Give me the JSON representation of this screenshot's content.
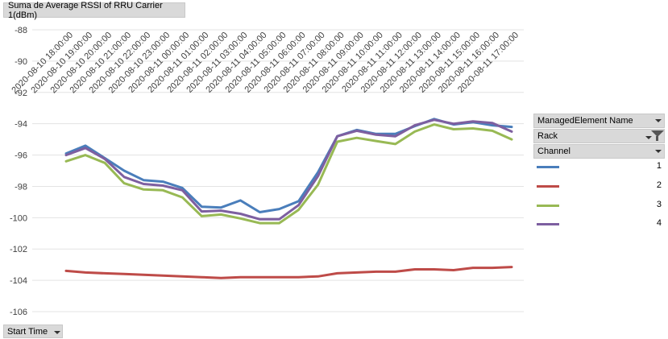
{
  "value_field": {
    "label": "Suma de Average RSSI of RRU Carrier 1(dBm)"
  },
  "axis_field": {
    "label": "Start Time"
  },
  "legend": {
    "header_managed": "ManagedElement Name",
    "header_rack": "Rack",
    "header_channel": "Channel",
    "items": [
      {
        "label": "1",
        "color": "#4a7ebb"
      },
      {
        "label": "2",
        "color": "#be4b48"
      },
      {
        "label": "3",
        "color": "#98b954"
      },
      {
        "label": "4",
        "color": "#7d5fa0"
      }
    ]
  },
  "chart_data": {
    "type": "line",
    "ylim": [
      -106,
      -88
    ],
    "yticks": [
      -88,
      -90,
      -92,
      -94,
      -96,
      -98,
      -100,
      -102,
      -104,
      -106
    ],
    "grid": true,
    "legend_position": "right",
    "categories": [
      "2020-08-10 18:00:00",
      "2020-08-10 19:00:00",
      "2020-08-10 20:00:00",
      "2020-08-10 21:00:00",
      "2020-08-10 22:00:00",
      "2020-08-10 23:00:00",
      "2020-08-11 00:00:00",
      "2020-08-11 01:00:00",
      "2020-08-11 02:00:00",
      "2020-08-11 03:00:00",
      "2020-08-11 04:00:00",
      "2020-08-11 05:00:00",
      "2020-08-11 06:00:00",
      "2020-08-11 07:00:00",
      "2020-08-11 08:00:00",
      "2020-08-11 09:00:00",
      "2020-08-11 10:00:00",
      "2020-08-11 11:00:00",
      "2020-08-11 12:00:00",
      "2020-08-11 13:00:00",
      "2020-08-11 14:00:00",
      "2020-08-11 15:00:00",
      "2020-08-11 16:00:00",
      "2020-08-11 17:00:00"
    ],
    "series": [
      {
        "name": "1",
        "color": "#4a7ebb",
        "values": [
          -95.9,
          -95.4,
          -96.2,
          -97.0,
          -97.6,
          -97.7,
          -98.1,
          -99.3,
          -99.35,
          -98.9,
          -99.65,
          -99.45,
          -98.95,
          -97.1,
          -94.8,
          -94.4,
          -94.65,
          -94.65,
          -94.15,
          -93.7,
          -94.05,
          -93.9,
          -94.1,
          -94.2
        ]
      },
      {
        "name": "2",
        "color": "#be4b48",
        "values": [
          -103.4,
          -103.5,
          -103.55,
          -103.6,
          -103.65,
          -103.7,
          -103.75,
          -103.8,
          -103.85,
          -103.8,
          -103.8,
          -103.8,
          -103.8,
          -103.75,
          -103.55,
          -103.5,
          -103.45,
          -103.45,
          -103.3,
          -103.3,
          -103.35,
          -103.2,
          -103.2,
          -103.15
        ]
      },
      {
        "name": "3",
        "color": "#98b954",
        "values": [
          -96.4,
          -96.0,
          -96.5,
          -97.8,
          -98.2,
          -98.25,
          -98.7,
          -99.9,
          -99.8,
          -100.05,
          -100.35,
          -100.35,
          -99.5,
          -97.9,
          -95.15,
          -94.9,
          -95.1,
          -95.3,
          -94.5,
          -94.05,
          -94.35,
          -94.3,
          -94.45,
          -95.0
        ]
      },
      {
        "name": "4",
        "color": "#7d5fa0",
        "values": [
          -96.0,
          -95.55,
          -96.25,
          -97.4,
          -97.85,
          -97.95,
          -98.25,
          -99.6,
          -99.55,
          -99.75,
          -100.1,
          -100.1,
          -99.2,
          -97.35,
          -94.8,
          -94.45,
          -94.7,
          -94.8,
          -94.1,
          -93.75,
          -94.0,
          -93.85,
          -93.95,
          -94.5
        ]
      }
    ]
  }
}
